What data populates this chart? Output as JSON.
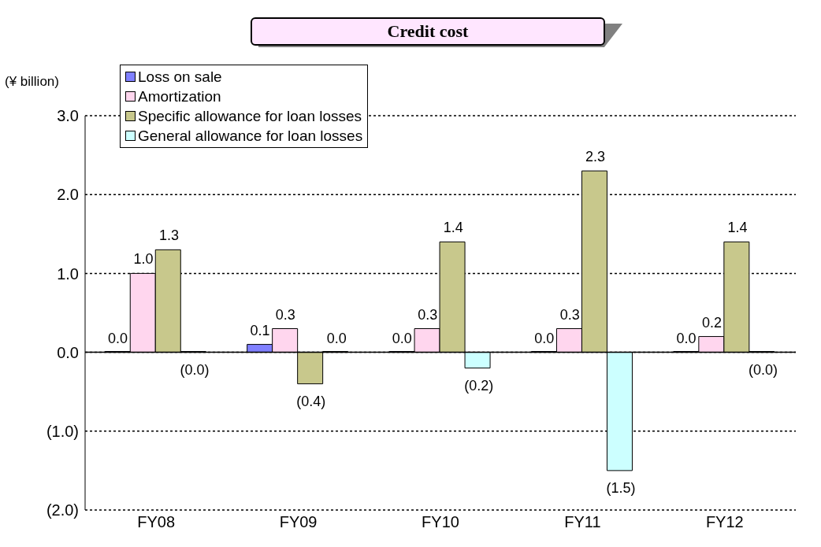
{
  "chart_data": {
    "type": "bar",
    "title": "Credit cost",
    "ylabel": "(¥ billion)",
    "categories": [
      "FY08",
      "FY09",
      "FY10",
      "FY11",
      "FY12"
    ],
    "series": [
      {
        "name": "Loss on sale",
        "color": "#8080ff",
        "values": [
          0.0,
          0.1,
          0.0,
          0.0,
          0.0
        ],
        "value_labels": [
          "0.0",
          "0.1",
          "0.0",
          "0.0",
          "0.0"
        ]
      },
      {
        "name": "Amortization",
        "color": "#ffd6ee",
        "values": [
          1.0,
          0.3,
          0.3,
          0.3,
          0.2
        ],
        "value_labels": [
          "1.0",
          "0.3",
          "0.3",
          "0.3",
          "0.2"
        ]
      },
      {
        "name": "Specific allowance for loan losses",
        "color": "#c8c88c",
        "values": [
          1.3,
          -0.4,
          1.4,
          2.3,
          1.4
        ],
        "value_labels": [
          "1.3",
          "(0.4)",
          "1.4",
          "2.3",
          "1.4"
        ]
      },
      {
        "name": "General allowance for loan losses",
        "color": "#ccffff",
        "values": [
          0.0,
          0.0,
          -0.2,
          -1.5,
          0.0
        ],
        "value_labels": [
          "(0.0)",
          "0.0",
          "(0.2)",
          "(1.5)",
          "(0.0)"
        ]
      }
    ],
    "ylim": [
      -2,
      3
    ],
    "yticks": [
      {
        "value": -2,
        "label": "(2.0)"
      },
      {
        "value": -1,
        "label": "(1.0)"
      },
      {
        "value": 0,
        "label": "0.0"
      },
      {
        "value": 1,
        "label": "1.0"
      },
      {
        "value": 2,
        "label": "2.0"
      },
      {
        "value": 3,
        "label": "3.0"
      }
    ],
    "grid": "y",
    "legend": "top left"
  }
}
